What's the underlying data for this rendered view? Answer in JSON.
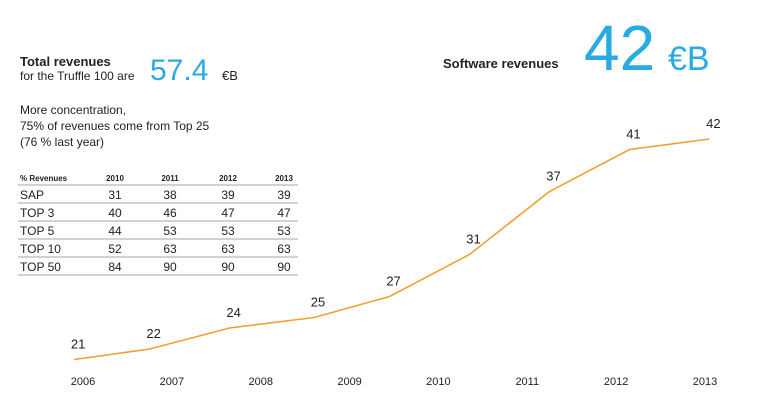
{
  "header": {
    "total_title": "Total revenues",
    "total_subtitle": "for the Truffle 100 are",
    "total_value": "57.4",
    "total_unit": "€B",
    "software_title": "Software revenues",
    "software_value": "42",
    "software_unit": "€B"
  },
  "concentration": [
    "More concentration,",
    "75% of revenues come from Top 25",
    "(76 % last year)"
  ],
  "table": {
    "columns": [
      "% Revenues",
      "2010",
      "2011",
      "2012",
      "2013"
    ],
    "rows": [
      [
        "SAP",
        "31",
        "38",
        "39",
        "39"
      ],
      [
        "TOP 3",
        "40",
        "46",
        "47",
        "47"
      ],
      [
        "TOP 5",
        "44",
        "53",
        "53",
        "53"
      ],
      [
        "TOP 10",
        "52",
        "63",
        "63",
        "63"
      ],
      [
        "TOP 50",
        "84",
        "90",
        "90",
        "90"
      ]
    ]
  },
  "chart_data": {
    "type": "line",
    "color": "#f0a030",
    "x": [
      2005.9,
      2006.75,
      2007.65,
      2008.6,
      2009.45,
      2010.35,
      2011.25,
      2012.15,
      2013.05
    ],
    "values": [
      21,
      22,
      24,
      25,
      27,
      31,
      37,
      41,
      42
    ],
    "xlim": [
      2005.5,
      2013.5
    ],
    "xticks": [
      2006,
      2007,
      2008,
      2009,
      2010,
      2011,
      2012,
      2013
    ],
    "ylim": [
      19,
      44
    ]
  }
}
